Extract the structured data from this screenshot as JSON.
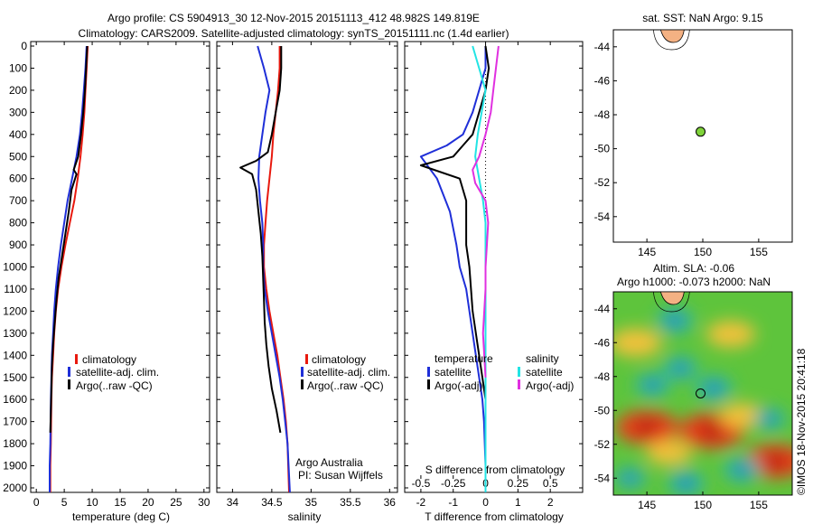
{
  "header": {
    "line1": "Argo profile: CS 5904913_30 12-Nov-2015 20151113_412 48.982S 149.819E",
    "line2": "Climatology: CARS2009. Satellite-adjusted climatology: synTS_20151111.nc (1.4d earlier)"
  },
  "colors": {
    "climatology": "#e8190e",
    "satellite": "#1f2fd8",
    "argo": "#000000",
    "sal_satellite": "#22e4e4",
    "sal_argo": "#e030e0",
    "float_marker": "#7fd23a",
    "land": "#f4b183"
  },
  "legend_entries": [
    "climatology",
    "satellite-adj. clim.",
    "Argo(..raw -QC)"
  ],
  "diff_legend": {
    "temp_title": "temperature",
    "sal_title": "salinity",
    "satellite": "satellite",
    "argo": "Argo(-adj)"
  },
  "annotations": {
    "institution": "Argo Australia",
    "pi": "PI: Susan Wijffels",
    "s_diff_label": "S difference from climatology",
    "watermark": "©IMOS 18-Nov-2015 20:41:18"
  },
  "map_titles": {
    "sst": "sat. SST: NaN Argo: 9.15",
    "sla_line1": "Altim. SLA: -0.06",
    "sla_line2": "Argo h1000: -0.073 h2000: NaN"
  },
  "chart_data": [
    {
      "type": "line",
      "id": "temperature",
      "xlabel": "temperature (deg C)",
      "ylabel": "",
      "xlim": [
        -1,
        31
      ],
      "ylim": [
        2050,
        0
      ],
      "xticks": [
        0,
        5,
        10,
        15,
        20,
        25,
        30
      ],
      "yticks": [
        0,
        100,
        200,
        300,
        400,
        500,
        600,
        700,
        800,
        900,
        1000,
        1100,
        1200,
        1300,
        1400,
        1500,
        1600,
        1700,
        1800,
        1900,
        2000
      ],
      "series": [
        {
          "name": "climatology",
          "color": "#e8190e",
          "x": [
            9.2,
            9.0,
            8.8,
            8.6,
            8.3,
            7.9,
            7.4,
            6.8,
            6.0,
            5.2,
            4.5,
            3.9,
            3.5,
            3.2,
            3.0,
            2.8,
            2.7,
            2.6,
            2.5,
            2.5
          ],
          "y": [
            0,
            100,
            200,
            300,
            400,
            500,
            600,
            700,
            800,
            900,
            1000,
            1100,
            1200,
            1300,
            1400,
            1500,
            1600,
            1800,
            1900,
            2020
          ]
        },
        {
          "name": "satellite-adj. clim.",
          "color": "#1f2fd8",
          "x": [
            9.0,
            8.8,
            8.5,
            8.2,
            7.8,
            7.2,
            6.4,
            5.6,
            5.0,
            4.4,
            3.9,
            3.5,
            3.2,
            3.0,
            2.8,
            2.6,
            2.5,
            2.4,
            2.4
          ],
          "y": [
            0,
            100,
            200,
            300,
            400,
            500,
            600,
            700,
            800,
            900,
            1000,
            1100,
            1200,
            1300,
            1400,
            1600,
            1800,
            1900,
            2020
          ]
        },
        {
          "name": "Argo(..raw -QC)",
          "color": "#000000",
          "x": [
            9.1,
            8.9,
            8.7,
            8.4,
            8.0,
            7.5,
            6.7,
            7.2,
            6.3,
            5.8,
            5.2,
            4.6,
            4.0,
            3.6,
            3.3,
            3.0,
            2.8,
            2.7,
            2.6,
            2.5
          ],
          "y": [
            0,
            100,
            200,
            300,
            400,
            500,
            560,
            580,
            650,
            750,
            850,
            950,
            1050,
            1150,
            1250,
            1350,
            1450,
            1550,
            1650,
            1750
          ]
        }
      ]
    },
    {
      "type": "line",
      "id": "salinity",
      "xlabel": "salinity",
      "ylabel": "",
      "xlim": [
        33.8,
        36.1
      ],
      "ylim": [
        2050,
        0
      ],
      "xticks": [
        34,
        34.5,
        35,
        35.5,
        36
      ],
      "series": [
        {
          "name": "climatology",
          "color": "#e8190e",
          "x": [
            34.6,
            34.6,
            34.58,
            34.55,
            34.52,
            34.5,
            34.47,
            34.44,
            34.42,
            34.4,
            34.4,
            34.43,
            34.47,
            34.52,
            34.57,
            34.61,
            34.65,
            34.68,
            34.7,
            34.72
          ],
          "y": [
            0,
            100,
            200,
            300,
            400,
            500,
            600,
            700,
            800,
            900,
            1000,
            1100,
            1200,
            1300,
            1400,
            1500,
            1600,
            1700,
            1800,
            2020
          ]
        },
        {
          "name": "satellite-adj. clim.",
          "color": "#1f2fd8",
          "x": [
            34.32,
            34.4,
            34.47,
            34.42,
            34.38,
            34.34,
            34.33,
            34.35,
            34.38,
            34.39,
            34.39,
            34.41,
            34.45,
            34.5,
            34.55,
            34.6,
            34.64,
            34.67,
            34.7,
            34.73
          ],
          "y": [
            0,
            100,
            200,
            300,
            400,
            500,
            600,
            700,
            800,
            900,
            1000,
            1100,
            1200,
            1300,
            1400,
            1500,
            1600,
            1700,
            1800,
            2020
          ]
        },
        {
          "name": "Argo(..raw -QC)",
          "color": "#000000",
          "x": [
            34.62,
            34.62,
            34.6,
            34.55,
            34.5,
            34.45,
            34.3,
            34.1,
            34.25,
            34.3,
            34.33,
            34.36,
            34.38,
            34.39,
            34.4,
            34.41,
            34.43,
            34.46,
            34.5,
            34.56,
            34.61
          ],
          "y": [
            0,
            100,
            200,
            300,
            400,
            480,
            520,
            550,
            580,
            650,
            750,
            850,
            950,
            1050,
            1150,
            1250,
            1350,
            1450,
            1550,
            1650,
            1750
          ]
        }
      ]
    },
    {
      "type": "line",
      "id": "difference",
      "xlabel": "T difference from climatology",
      "x2label": "S difference from climatology",
      "xlim": [
        -2.5,
        3
      ],
      "x2lim": [
        -0.625,
        0.75
      ],
      "ylim": [
        2050,
        0
      ],
      "xticks": [
        -2,
        -1,
        0,
        1,
        2
      ],
      "x2ticks": [
        -0.5,
        -0.25,
        0,
        0.25,
        0.5
      ],
      "x2ticklabels": [
        "-0.5",
        "-0.25",
        "0",
        "0.25",
        "0.5"
      ],
      "series": [
        {
          "name": "temperature satellite",
          "color": "#1f2fd8",
          "x": [
            0.0,
            0.0,
            -0.2,
            -0.4,
            -0.7,
            -1.2,
            -2.0,
            -1.5,
            -1.1,
            -0.9,
            -0.8,
            -0.6,
            -0.4,
            -0.2,
            -0.1,
            -0.05,
            0.0,
            0.0
          ],
          "y": [
            0,
            100,
            200,
            300,
            400,
            450,
            500,
            600,
            750,
            900,
            1000,
            1100,
            1300,
            1500,
            1600,
            1700,
            1900,
            2020
          ]
        },
        {
          "name": "temperature Argo(-adj)",
          "color": "#000000",
          "x": [
            0.0,
            0.1,
            0.0,
            -0.2,
            -0.4,
            -0.7,
            -1.0,
            -2.0,
            -0.8,
            -0.6,
            -0.6,
            -0.5,
            -0.4,
            -0.3,
            -0.2,
            -0.1,
            0.0
          ],
          "y": [
            0,
            100,
            200,
            300,
            400,
            450,
            500,
            540,
            600,
            700,
            900,
            1000,
            1200,
            1300,
            1400,
            1500,
            1600
          ]
        },
        {
          "name": "salinity satellite",
          "color": "#22e4e4",
          "x": [
            -0.1,
            -0.05,
            0.0,
            -0.03,
            -0.06,
            -0.08,
            -0.05,
            -0.02,
            0.0,
            0.0,
            0.0,
            0.0,
            0.0,
            0.0,
            0.0,
            0.0
          ],
          "y": [
            0,
            100,
            200,
            300,
            400,
            500,
            600,
            700,
            800,
            900,
            1000,
            1200,
            1400,
            1600,
            1800,
            2020
          ]
        },
        {
          "name": "salinity Argo(-adj)",
          "color": "#e030e0",
          "x": [
            0.1,
            0.08,
            0.06,
            0.04,
            0.0,
            -0.05,
            -0.1,
            -0.08,
            0.0,
            0.02,
            0.01,
            0.0,
            0.0,
            -0.02,
            0.0
          ],
          "y": [
            0,
            100,
            200,
            300,
            400,
            500,
            560,
            620,
            700,
            800,
            900,
            1000,
            1100,
            1300,
            1500
          ]
        }
      ]
    },
    {
      "type": "scatter",
      "id": "sst-map",
      "xlim": [
        142,
        158
      ],
      "ylim": [
        -55.5,
        -43
      ],
      "xticks": [
        145,
        150,
        155
      ],
      "yticks": [
        -44,
        -46,
        -48,
        -50,
        -52,
        -54
      ],
      "points": [
        {
          "x": 149.8,
          "y": -49.0
        }
      ]
    },
    {
      "type": "heatmap",
      "id": "sla-map",
      "xlim": [
        142,
        158
      ],
      "ylim": [
        -55,
        -43
      ],
      "xticks": [
        145,
        150,
        155
      ],
      "yticks": [
        -44,
        -46,
        -48,
        -50,
        -52,
        -54
      ],
      "points": [
        {
          "x": 149.8,
          "y": -49.0
        }
      ],
      "highs": [
        {
          "x": 144.0,
          "y": -46.0,
          "v": 0.6
        },
        {
          "x": 152.5,
          "y": -45.5,
          "v": 0.5
        },
        {
          "x": 145.0,
          "y": -51.0,
          "v": 0.9
        },
        {
          "x": 150.8,
          "y": -51.2,
          "v": 1.0
        },
        {
          "x": 156.5,
          "y": -53.0,
          "v": 0.9
        },
        {
          "x": 153.5,
          "y": -50.3,
          "v": 0.4
        },
        {
          "x": 147.0,
          "y": -52.5,
          "v": 0.4
        }
      ],
      "lows": [
        {
          "x": 147.5,
          "y": -44.7,
          "v": -0.6
        },
        {
          "x": 148.0,
          "y": -47.5,
          "v": -0.5
        },
        {
          "x": 151.0,
          "y": -48.7,
          "v": -0.6
        },
        {
          "x": 145.5,
          "y": -48.5,
          "v": -0.5
        },
        {
          "x": 153.5,
          "y": -53.5,
          "v": -0.6
        },
        {
          "x": 148.5,
          "y": -54.3,
          "v": -0.6
        },
        {
          "x": 156.0,
          "y": -50.5,
          "v": -0.4
        },
        {
          "x": 143.5,
          "y": -54.0,
          "v": -0.4
        }
      ]
    }
  ]
}
